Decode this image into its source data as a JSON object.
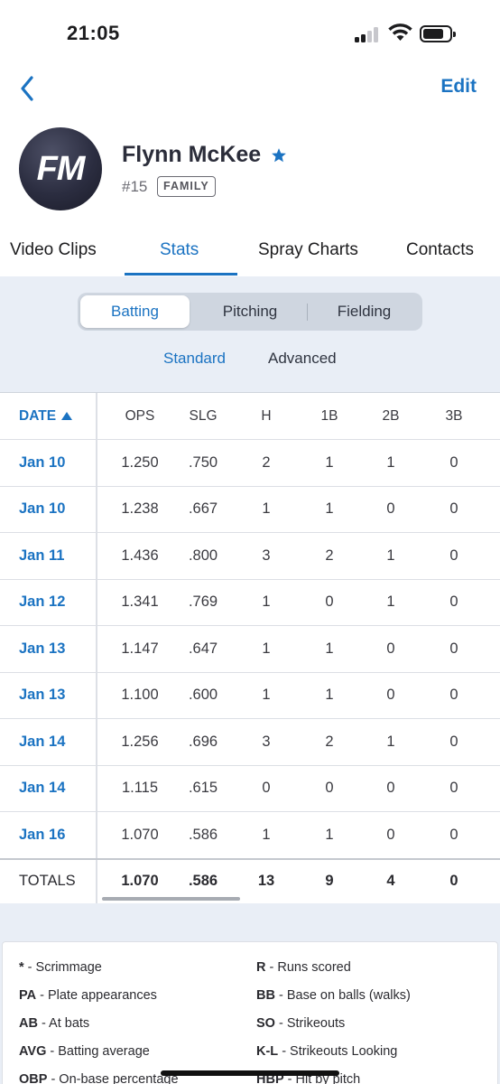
{
  "status_bar": {
    "time": "21:05"
  },
  "nav": {
    "edit_label": "Edit"
  },
  "profile": {
    "initials": "FM",
    "name": "Flynn McKee",
    "jersey": "#15",
    "badge": "FAMILY"
  },
  "tabs": [
    {
      "label": "Video Clips",
      "active": false
    },
    {
      "label": "Stats",
      "active": true
    },
    {
      "label": "Spray Charts",
      "active": false
    },
    {
      "label": "Contacts",
      "active": false
    }
  ],
  "segments": [
    {
      "label": "Batting",
      "active": true
    },
    {
      "label": "Pitching",
      "active": false
    },
    {
      "label": "Fielding",
      "active": false
    }
  ],
  "view_toggle": {
    "standard": "Standard",
    "advanced": "Advanced",
    "active": "Standard"
  },
  "table": {
    "columns": [
      "DATE",
      "OPS",
      "SLG",
      "H",
      "1B",
      "2B",
      "3B"
    ],
    "rows": [
      [
        "Jan 10",
        "1.250",
        ".750",
        "2",
        "1",
        "1",
        "0"
      ],
      [
        "Jan 10",
        "1.238",
        ".667",
        "1",
        "1",
        "0",
        "0"
      ],
      [
        "Jan 11",
        "1.436",
        ".800",
        "3",
        "2",
        "1",
        "0"
      ],
      [
        "Jan 12",
        "1.341",
        ".769",
        "1",
        "0",
        "1",
        "0"
      ],
      [
        "Jan 13",
        "1.147",
        ".647",
        "1",
        "1",
        "0",
        "0"
      ],
      [
        "Jan 13",
        "1.100",
        ".600",
        "1",
        "1",
        "0",
        "0"
      ],
      [
        "Jan 14",
        "1.256",
        ".696",
        "3",
        "2",
        "1",
        "0"
      ],
      [
        "Jan 14",
        "1.115",
        ".615",
        "0",
        "0",
        "0",
        "0"
      ],
      [
        "Jan 16",
        "1.070",
        ".586",
        "1",
        "1",
        "0",
        "0"
      ]
    ],
    "totals": [
      "TOTALS",
      "1.070",
      ".586",
      "13",
      "9",
      "4",
      "0"
    ]
  },
  "legend": {
    "left": [
      {
        "abbr": "*",
        "desc": " - Scrimmage"
      },
      {
        "abbr": "PA",
        "desc": " - Plate appearances"
      },
      {
        "abbr": "AB",
        "desc": " - At bats"
      },
      {
        "abbr": "AVG",
        "desc": " - Batting average"
      },
      {
        "abbr": "OBP",
        "desc": " - On-base percentage"
      }
    ],
    "right": [
      {
        "abbr": "R",
        "desc": " - Runs scored"
      },
      {
        "abbr": "BB",
        "desc": " - Base on balls (walks)"
      },
      {
        "abbr": "SO",
        "desc": " - Strikeouts"
      },
      {
        "abbr": "K-L",
        "desc": " - Strikeouts Looking"
      },
      {
        "abbr": "HBP",
        "desc": " - Hit by pitch"
      }
    ]
  },
  "colors": {
    "accent": "#1b73c2",
    "panel": "#e9eef6",
    "avatar": "#2b2d40"
  }
}
